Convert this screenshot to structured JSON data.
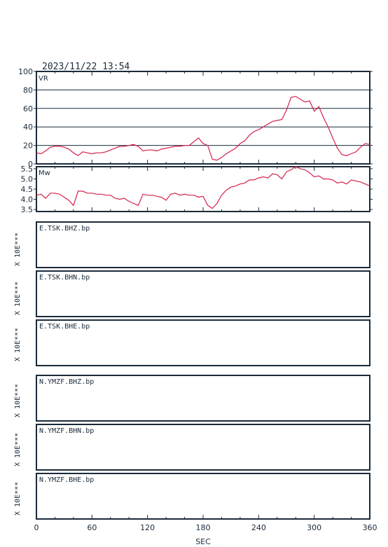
{
  "header": {
    "datetime": "2023/11/22  13:54"
  },
  "colors": {
    "trace": "#d6204a",
    "frame": "#1a2a3a",
    "text": "#1a2a3a"
  },
  "chart_data": [
    {
      "type": "line",
      "panel": "vr",
      "label": "VR",
      "ylim": [
        0,
        100
      ],
      "yticks": [
        "0",
        "20",
        "40",
        "60",
        "80",
        "100"
      ],
      "grid": true,
      "x": [
        0,
        5,
        10,
        15,
        20,
        25,
        30,
        35,
        40,
        45,
        50,
        55,
        60,
        65,
        70,
        75,
        80,
        85,
        90,
        95,
        100,
        105,
        110,
        115,
        120,
        125,
        130,
        135,
        140,
        145,
        150,
        155,
        160,
        165,
        170,
        175,
        180,
        185,
        190,
        195,
        200,
        205,
        210,
        215,
        220,
        225,
        230,
        235,
        240,
        245,
        250,
        255,
        260,
        265,
        270,
        275,
        280,
        285,
        290,
        295,
        300,
        305,
        310,
        315,
        320,
        325,
        330,
        335,
        340,
        345,
        350,
        355,
        360
      ],
      "y": [
        12,
        11,
        14,
        18,
        19,
        19,
        18,
        16,
        12,
        9,
        13,
        12,
        11,
        12,
        12,
        13,
        15,
        17,
        19,
        19,
        20,
        21,
        19,
        14,
        15,
        15,
        14,
        16,
        17,
        18,
        19,
        19,
        20,
        20,
        24,
        28,
        22,
        20,
        5,
        4,
        7,
        11,
        14,
        17,
        22,
        25,
        31,
        35,
        37,
        40,
        43,
        46,
        47,
        48,
        58,
        72,
        73,
        70,
        67,
        68,
        57,
        62,
        50,
        40,
        28,
        17,
        10,
        9,
        11,
        13,
        18,
        22,
        21
      ]
    },
    {
      "type": "line",
      "panel": "mw",
      "label": "Mw",
      "ylim": [
        3.4,
        5.6
      ],
      "yticks": [
        "3.5",
        "4.0",
        "4.5",
        "5.0",
        "5.5"
      ],
      "grid": false,
      "x": [
        0,
        5,
        10,
        15,
        20,
        25,
        30,
        35,
        40,
        45,
        50,
        55,
        60,
        65,
        70,
        75,
        80,
        85,
        90,
        95,
        100,
        105,
        110,
        115,
        120,
        125,
        130,
        135,
        140,
        145,
        150,
        155,
        160,
        165,
        170,
        175,
        180,
        185,
        190,
        195,
        200,
        205,
        210,
        215,
        220,
        225,
        230,
        235,
        240,
        245,
        250,
        255,
        260,
        265,
        270,
        275,
        280,
        285,
        290,
        295,
        300,
        305,
        310,
        315,
        320,
        325,
        330,
        335,
        340,
        345,
        350,
        355,
        360
      ],
      "y": [
        4.2,
        4.25,
        4.05,
        4.3,
        4.3,
        4.25,
        4.1,
        3.95,
        3.7,
        4.4,
        4.4,
        4.3,
        4.3,
        4.25,
        4.25,
        4.2,
        4.2,
        4.05,
        4.0,
        4.05,
        3.9,
        3.8,
        3.7,
        4.25,
        4.2,
        4.2,
        4.15,
        4.1,
        3.95,
        4.25,
        4.3,
        4.2,
        4.25,
        4.2,
        4.2,
        4.1,
        4.15,
        3.7,
        3.55,
        3.8,
        4.2,
        4.45,
        4.6,
        4.65,
        4.75,
        4.8,
        4.95,
        4.95,
        5.05,
        5.1,
        5.05,
        5.25,
        5.2,
        5.0,
        5.35,
        5.45,
        5.6,
        5.5,
        5.45,
        5.3,
        5.1,
        5.15,
        5.0,
        5.0,
        4.95,
        4.8,
        4.85,
        4.75,
        4.95,
        4.9,
        4.85,
        4.75,
        4.65
      ]
    }
  ],
  "channels": [
    {
      "label": "E.TSK.BHZ.bp",
      "scale": "X 10E***"
    },
    {
      "label": "E.TSK.BHN.bp",
      "scale": "X 10E***"
    },
    {
      "label": "E.TSK.BHE.bp",
      "scale": "X 10E***"
    },
    {
      "label": "N.YMZF.BHZ.bp",
      "scale": "X 10E***"
    },
    {
      "label": "N.YMZF.BHN.bp",
      "scale": "X 10E***"
    },
    {
      "label": "N.YMZF.BHE.bp",
      "scale": "X 10E***"
    }
  ],
  "x_axis": {
    "ticks": [
      "0",
      "60",
      "120",
      "180",
      "240",
      "300",
      "360"
    ],
    "range": [
      0,
      360
    ],
    "label": "SEC"
  }
}
